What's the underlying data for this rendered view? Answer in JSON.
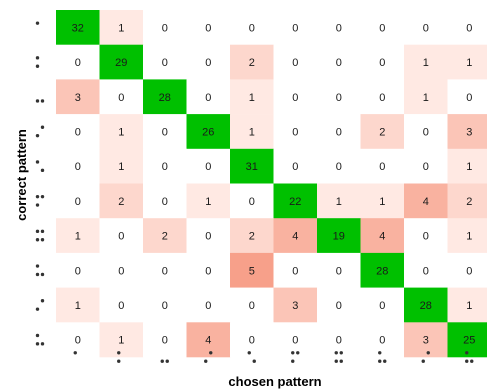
{
  "chart_data": {
    "type": "heatmap",
    "xlabel": "chosen pattern",
    "ylabel": "correct pattern",
    "categories": [
      "p1",
      "p2",
      "p3",
      "p4",
      "p5",
      "p6",
      "p7",
      "p8",
      "p9",
      "p10"
    ],
    "tick_patterns": [
      [
        [
          1,
          0
        ],
        [
          0,
          0
        ],
        [
          0,
          0
        ]
      ],
      [
        [
          1,
          0
        ],
        [
          0,
          0
        ],
        [
          1,
          0
        ]
      ],
      [
        [
          0,
          0
        ],
        [
          0,
          0
        ],
        [
          1,
          1
        ]
      ],
      [
        [
          0,
          1
        ],
        [
          0,
          0
        ],
        [
          1,
          0
        ]
      ],
      [
        [
          1,
          0
        ],
        [
          0,
          0
        ],
        [
          0,
          1
        ]
      ],
      [
        [
          1,
          1
        ],
        [
          0,
          0
        ],
        [
          1,
          0
        ]
      ],
      [
        [
          1,
          1
        ],
        [
          0,
          0
        ],
        [
          1,
          1
        ]
      ],
      [
        [
          1,
          0
        ],
        [
          0,
          0
        ],
        [
          1,
          1
        ]
      ],
      [
        [
          0,
          1
        ],
        [
          0,
          0
        ],
        [
          1,
          0
        ]
      ],
      [
        [
          1,
          0
        ],
        [
          0,
          0
        ],
        [
          1,
          1
        ]
      ]
    ],
    "values": [
      [
        32,
        1,
        0,
        0,
        0,
        0,
        0,
        0,
        0,
        0
      ],
      [
        0,
        29,
        0,
        0,
        2,
        0,
        0,
        0,
        1,
        1
      ],
      [
        3,
        0,
        28,
        0,
        1,
        0,
        0,
        0,
        1,
        0
      ],
      [
        0,
        1,
        0,
        26,
        1,
        0,
        0,
        2,
        0,
        3
      ],
      [
        0,
        1,
        0,
        0,
        31,
        0,
        0,
        0,
        0,
        1
      ],
      [
        0,
        2,
        0,
        1,
        0,
        22,
        1,
        1,
        4,
        2
      ],
      [
        1,
        0,
        2,
        0,
        2,
        4,
        19,
        4,
        0,
        1
      ],
      [
        0,
        0,
        0,
        0,
        5,
        0,
        0,
        28,
        0,
        0
      ],
      [
        1,
        0,
        0,
        0,
        0,
        3,
        0,
        0,
        28,
        1
      ],
      [
        0,
        1,
        0,
        4,
        0,
        0,
        0,
        0,
        3,
        25
      ]
    ],
    "colors": {
      "diagonal": "#00c000",
      "offdiag_low": "#ffe9e3",
      "offdiag_high": "#f7a08a",
      "background": "#ffffff",
      "dot": "#333333"
    }
  }
}
